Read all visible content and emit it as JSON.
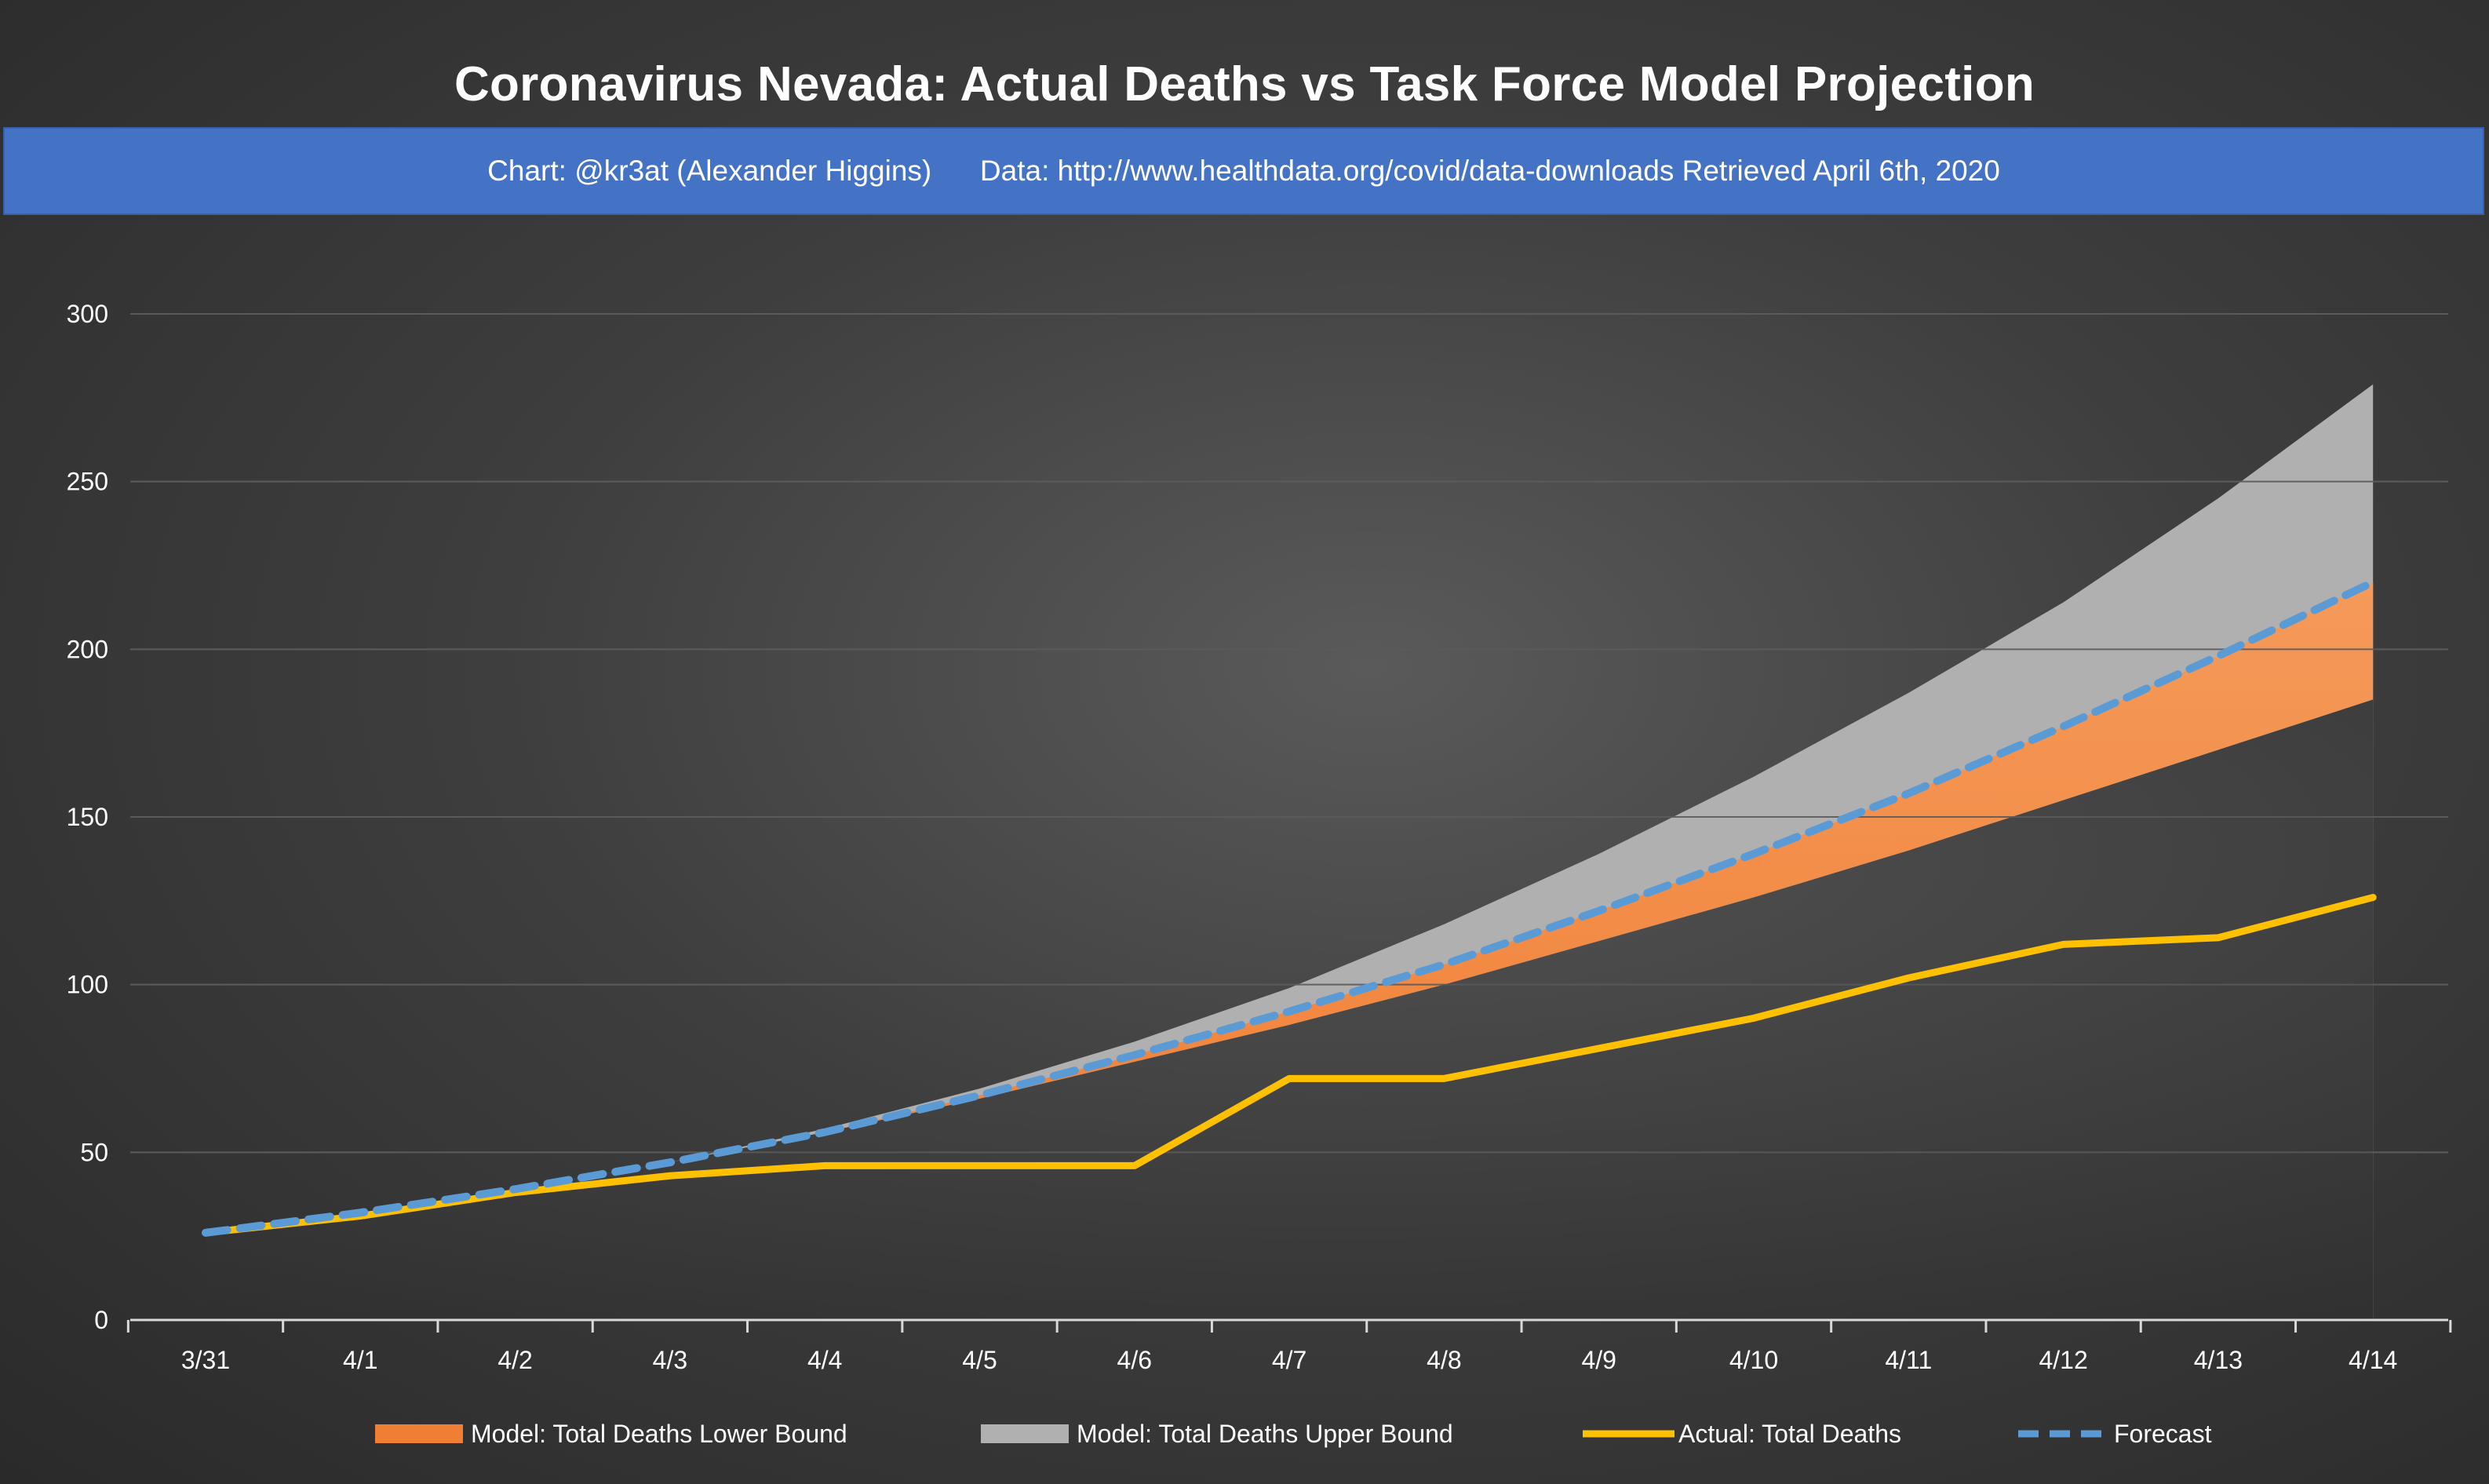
{
  "header": {
    "title": "Coronavirus Nevada: Actual Deaths vs Task Force Model Projection",
    "subtitle_credit": "Chart: @kr3at (Alexander Higgins)",
    "subtitle_source": "Data: http://www.healthdata.org/covid/data-downloads Retrieved April 6th, 2020"
  },
  "colors": {
    "lower_bound": "#f07f35",
    "upper_bound": "#b0b0b0",
    "actual": "#ffc000",
    "forecast": "#5b9bd5",
    "subtitle_bar": "#4472c4"
  },
  "chart_data": {
    "type": "area",
    "title": "Coronavirus Nevada: Actual Deaths vs Task Force Model Projection",
    "xlabel": "",
    "ylabel": "",
    "ylim": [
      0,
      300
    ],
    "yticks": [
      0,
      50,
      100,
      150,
      200,
      250,
      300
    ],
    "grid": true,
    "legend_position": "bottom",
    "categories": [
      "3/31",
      "4/1",
      "4/2",
      "4/3",
      "4/4",
      "4/5",
      "4/6",
      "4/7",
      "4/8",
      "4/9",
      "4/10",
      "4/11",
      "4/12",
      "4/13",
      "4/14"
    ],
    "series": [
      {
        "name": "Model: Total Deaths Lower Bound",
        "type": "area",
        "values": [
          26,
          32,
          39,
          47,
          56,
          66,
          77,
          88,
          100,
          113,
          126,
          140,
          155,
          170,
          185
        ]
      },
      {
        "name": "Model: Total Deaths Upper Bound",
        "type": "area",
        "values": [
          26,
          32,
          39,
          47,
          57,
          69,
          83,
          99,
          118,
          139,
          162,
          187,
          214,
          245,
          279
        ]
      },
      {
        "name": "Actual: Total Deaths",
        "type": "line",
        "values": [
          26,
          31,
          38,
          43,
          46,
          46,
          46,
          72,
          72,
          81,
          90,
          102,
          112,
          114,
          126
        ]
      },
      {
        "name": "Forecast",
        "type": "line-dashed",
        "values": [
          26,
          32,
          39,
          47,
          56,
          67,
          79,
          92,
          106,
          122,
          139,
          157,
          177,
          198,
          220
        ]
      }
    ]
  }
}
